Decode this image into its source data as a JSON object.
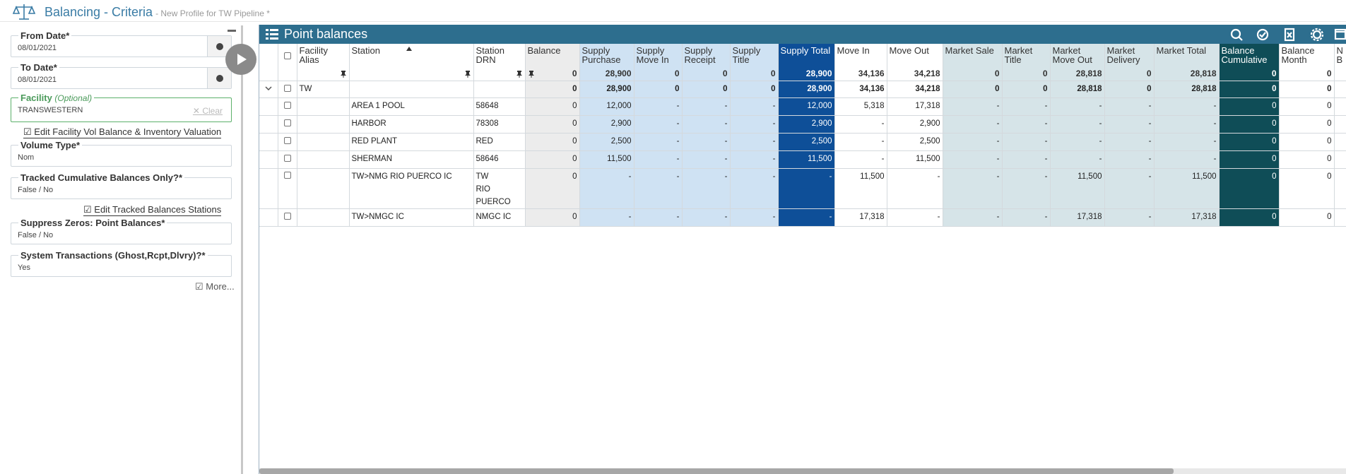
{
  "header": {
    "title": "Balancing - Criteria",
    "subtitle": "- New Profile for TW Pipeline *"
  },
  "criteria": {
    "from_date": {
      "label": "From Date*",
      "value": "08/01/2021"
    },
    "to_date": {
      "label": "To Date*",
      "value": "08/01/2021"
    },
    "facility": {
      "label": "Facility",
      "hint": "(Optional)",
      "value": "TRANSWESTERN",
      "clear": "Clear"
    },
    "facility_link": "Edit Facility Vol Balance & Inventory Valuation",
    "volume_type": {
      "label": "Volume Type*",
      "value": "Nom"
    },
    "tracked": {
      "label": "Tracked Cumulative Balances Only?*",
      "value": "False / No"
    },
    "tracked_link": "Edit Tracked Balances Stations",
    "suppress": {
      "label": "Suppress Zeros: Point Balances*",
      "value": "False / No"
    },
    "system_tx": {
      "label": "System Transactions (Ghost,Rcpt,Dlvry)?*",
      "value": "Yes"
    },
    "more": "More..."
  },
  "grid": {
    "title": "Point balances",
    "columns": [
      {
        "name": "Facility Alias"
      },
      {
        "name": "Station"
      },
      {
        "name": "Station DRN"
      },
      {
        "name": "Balance",
        "total": "0"
      },
      {
        "name": "Supply Purchase",
        "total": "28,900"
      },
      {
        "name": "Supply Move In",
        "total": "0"
      },
      {
        "name": "Supply Receipt",
        "total": "0"
      },
      {
        "name": "Supply Title",
        "total": "0"
      },
      {
        "name": "Supply Total",
        "total": "28,900"
      },
      {
        "name": "Move In",
        "total": "34,136"
      },
      {
        "name": "Move Out",
        "total": "34,218"
      },
      {
        "name": "Market Sale",
        "total": "0"
      },
      {
        "name": "Market Title",
        "total": "0"
      },
      {
        "name": "Market Move Out",
        "total": "28,818"
      },
      {
        "name": "Market Delivery",
        "total": "0"
      },
      {
        "name": "Market Total",
        "total": "28,818"
      },
      {
        "name": "Balance Cumulative",
        "total": "0"
      },
      {
        "name": "Balance Month",
        "total": "0"
      },
      {
        "name": "N B"
      }
    ],
    "group": {
      "alias": "TW",
      "values": [
        "0",
        "28,900",
        "0",
        "0",
        "0",
        "28,900",
        "34,136",
        "34,218",
        "0",
        "0",
        "28,818",
        "0",
        "28,818",
        "0",
        "0"
      ]
    },
    "rows": [
      {
        "station": "AREA 1 POOL",
        "drn": "58648",
        "values": [
          "0",
          "12,000",
          "-",
          "-",
          "-",
          "12,000",
          "5,318",
          "17,318",
          "-",
          "-",
          "-",
          "-",
          "-",
          "0",
          "0"
        ]
      },
      {
        "station": "HARBOR",
        "drn": "78308",
        "values": [
          "0",
          "2,900",
          "-",
          "-",
          "-",
          "2,900",
          "-",
          "2,900",
          "-",
          "-",
          "-",
          "-",
          "-",
          "0",
          "0"
        ]
      },
      {
        "station": "RED PLANT",
        "drn": "RED",
        "values": [
          "0",
          "2,500",
          "-",
          "-",
          "-",
          "2,500",
          "-",
          "2,500",
          "-",
          "-",
          "-",
          "-",
          "-",
          "0",
          "0"
        ]
      },
      {
        "station": "SHERMAN",
        "drn": "58646",
        "values": [
          "0",
          "11,500",
          "-",
          "-",
          "-",
          "11,500",
          "-",
          "11,500",
          "-",
          "-",
          "-",
          "-",
          "-",
          "0",
          "0"
        ]
      },
      {
        "station": "TW>NMG RIO PUERCO IC",
        "drn": "TW RIO PUERCO",
        "values": [
          "0",
          "-",
          "-",
          "-",
          "-",
          "-",
          "11,500",
          "-",
          "-",
          "-",
          "11,500",
          "-",
          "11,500",
          "0",
          "0"
        ]
      },
      {
        "station": "TW>NMGC IC",
        "drn": "NMGC IC",
        "values": [
          "0",
          "-",
          "-",
          "-",
          "-",
          "-",
          "17,318",
          "-",
          "-",
          "-",
          "17,318",
          "-",
          "17,318",
          "0",
          "0"
        ]
      }
    ]
  }
}
